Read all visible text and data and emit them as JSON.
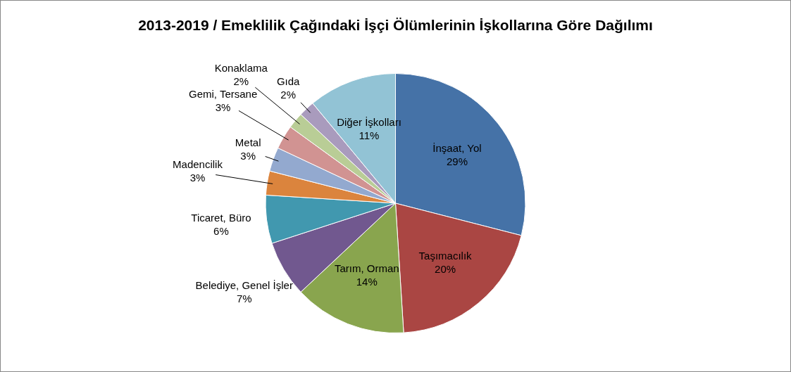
{
  "chart_data": {
    "type": "pie",
    "title": "2013-2019 / Emeklilik Çağındaki İşçi Ölümlerinin İşkollarına Göre Dağılımı",
    "categories": [
      "İnşaat, Yol",
      "Taşımacılık",
      "Tarım, Orman",
      "Belediye, Genel İşler",
      "Ticaret, Büro",
      "Madencilik",
      "Metal",
      "Gemi, Tersane",
      "Konaklama",
      "Gıda",
      "Diğer İşkolları"
    ],
    "values": [
      29,
      20,
      14,
      7,
      6,
      3,
      3,
      3,
      2,
      2,
      11
    ],
    "value_labels": [
      "29%",
      "20%",
      "14%",
      "7%",
      "6%",
      "3%",
      "3%",
      "3%",
      "2%",
      "2%",
      "11%"
    ],
    "colors": [
      "#4572a7",
      "#aa4643",
      "#89a54e",
      "#71588f",
      "#4198af",
      "#db843d",
      "#93a9cf",
      "#d19392",
      "#b9cd96",
      "#a99bbd",
      "#92c3d5"
    ],
    "legend": false
  }
}
